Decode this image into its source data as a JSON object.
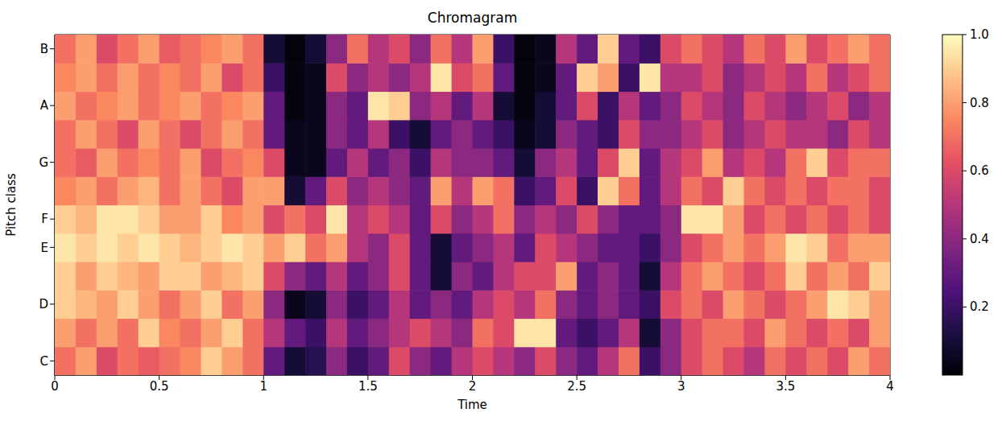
{
  "chart_data": {
    "type": "heatmap",
    "title": "Chromagram",
    "xlabel": "Time",
    "ylabel": "Pitch class",
    "categories": [
      "C",
      null,
      "D",
      null,
      "E",
      "F",
      null,
      "G",
      null,
      "A",
      null,
      "B"
    ],
    "x": [
      0.05,
      0.15,
      0.25,
      0.35,
      0.45,
      0.55,
      0.65,
      0.75,
      0.85,
      0.95,
      1.05,
      1.15,
      1.25,
      1.35,
      1.45,
      1.55,
      1.65,
      1.75,
      1.85,
      1.95,
      2.05,
      2.15,
      2.25,
      2.35,
      2.45,
      2.55,
      2.65,
      2.75,
      2.85,
      2.95,
      3.05,
      3.15,
      3.25,
      3.35,
      3.45,
      3.55,
      3.65,
      3.75,
      3.85,
      3.95
    ],
    "xlim": [
      0,
      4
    ],
    "xticks": [
      0,
      0.5,
      1,
      1.5,
      2,
      2.5,
      3,
      3.5,
      4
    ],
    "cells": [
      [
        0.7,
        0.8,
        0.6,
        0.7,
        0.65,
        0.7,
        0.75,
        0.9,
        0.8,
        0.7,
        0.3,
        0.1,
        0.15,
        0.4,
        0.2,
        0.3,
        0.6,
        0.4,
        0.3,
        0.5,
        0.6,
        0.5,
        0.4,
        0.6,
        0.4,
        0.3,
        0.5,
        0.7,
        0.2,
        0.4,
        0.6,
        0.7,
        0.6,
        0.5,
        0.7,
        0.6,
        0.7,
        0.6,
        0.8,
        0.7
      ],
      [
        0.8,
        0.7,
        0.8,
        0.7,
        0.9,
        0.75,
        0.7,
        0.8,
        0.9,
        0.7,
        0.5,
        0.3,
        0.2,
        0.5,
        0.3,
        0.4,
        0.5,
        0.6,
        0.5,
        0.4,
        0.7,
        0.6,
        0.95,
        0.95,
        0.3,
        0.2,
        0.3,
        0.5,
        0.1,
        0.4,
        0.6,
        0.7,
        0.7,
        0.6,
        0.8,
        0.7,
        0.6,
        0.7,
        0.6,
        0.8
      ],
      [
        0.9,
        0.85,
        0.8,
        0.9,
        0.8,
        0.7,
        0.8,
        0.9,
        0.7,
        0.8,
        0.4,
        0.05,
        0.1,
        0.4,
        0.2,
        0.3,
        0.5,
        0.3,
        0.4,
        0.3,
        0.5,
        0.6,
        0.5,
        0.7,
        0.4,
        0.3,
        0.4,
        0.3,
        0.2,
        0.6,
        0.7,
        0.6,
        0.8,
        0.7,
        0.6,
        0.7,
        0.8,
        0.95,
        0.9,
        0.8
      ],
      [
        0.9,
        0.8,
        0.9,
        0.85,
        0.8,
        0.9,
        0.9,
        0.8,
        0.85,
        0.9,
        0.6,
        0.4,
        0.3,
        0.5,
        0.3,
        0.4,
        0.6,
        0.3,
        0.1,
        0.4,
        0.3,
        0.5,
        0.6,
        0.6,
        0.8,
        0.3,
        0.4,
        0.3,
        0.1,
        0.5,
        0.7,
        0.8,
        0.7,
        0.6,
        0.7,
        0.9,
        0.7,
        0.8,
        0.7,
        0.9
      ],
      [
        0.95,
        0.9,
        0.95,
        0.9,
        0.95,
        0.9,
        0.85,
        0.9,
        0.95,
        0.9,
        0.8,
        0.9,
        0.7,
        0.8,
        0.5,
        0.4,
        0.6,
        0.3,
        0.1,
        0.3,
        0.4,
        0.5,
        0.3,
        0.6,
        0.5,
        0.4,
        0.3,
        0.3,
        0.2,
        0.4,
        0.6,
        0.7,
        0.8,
        0.7,
        0.8,
        0.95,
        0.9,
        0.7,
        0.8,
        0.8
      ],
      [
        0.9,
        0.85,
        0.95,
        0.95,
        0.9,
        0.8,
        0.8,
        0.9,
        0.75,
        0.8,
        0.6,
        0.7,
        0.6,
        0.95,
        0.5,
        0.6,
        0.5,
        0.3,
        0.6,
        0.4,
        0.5,
        0.7,
        0.4,
        0.5,
        0.4,
        0.6,
        0.4,
        0.3,
        0.3,
        0.4,
        0.95,
        0.95,
        0.8,
        0.6,
        0.7,
        0.6,
        0.7,
        0.6,
        0.7,
        0.6
      ],
      [
        0.75,
        0.8,
        0.7,
        0.8,
        0.85,
        0.7,
        0.8,
        0.7,
        0.6,
        0.8,
        0.8,
        0.1,
        0.3,
        0.6,
        0.4,
        0.5,
        0.4,
        0.3,
        0.8,
        0.5,
        0.8,
        0.7,
        0.2,
        0.3,
        0.6,
        0.2,
        0.9,
        0.7,
        0.3,
        0.5,
        0.7,
        0.6,
        0.9,
        0.7,
        0.6,
        0.7,
        0.6,
        0.7,
        0.7,
        0.6
      ],
      [
        0.7,
        0.65,
        0.8,
        0.7,
        0.75,
        0.7,
        0.8,
        0.6,
        0.7,
        0.75,
        0.6,
        0.05,
        0.05,
        0.3,
        0.5,
        0.3,
        0.4,
        0.2,
        0.5,
        0.4,
        0.4,
        0.3,
        0.1,
        0.4,
        0.5,
        0.3,
        0.6,
        0.9,
        0.3,
        0.5,
        0.6,
        0.8,
        0.5,
        0.6,
        0.5,
        0.7,
        0.9,
        0.6,
        0.7,
        0.7
      ],
      [
        0.7,
        0.8,
        0.7,
        0.6,
        0.8,
        0.7,
        0.6,
        0.7,
        0.8,
        0.7,
        0.3,
        0.05,
        0.05,
        0.4,
        0.3,
        0.5,
        0.2,
        0.1,
        0.3,
        0.4,
        0.3,
        0.2,
        0.05,
        0.1,
        0.4,
        0.3,
        0.2,
        0.6,
        0.4,
        0.4,
        0.5,
        0.6,
        0.4,
        0.5,
        0.6,
        0.5,
        0.5,
        0.4,
        0.6,
        0.5
      ],
      [
        0.8,
        0.7,
        0.75,
        0.8,
        0.7,
        0.75,
        0.8,
        0.7,
        0.75,
        0.8,
        0.3,
        0.02,
        0.05,
        0.4,
        0.3,
        0.95,
        0.9,
        0.4,
        0.5,
        0.3,
        0.5,
        0.1,
        0.02,
        0.1,
        0.3,
        0.6,
        0.2,
        0.5,
        0.3,
        0.4,
        0.6,
        0.5,
        0.4,
        0.6,
        0.5,
        0.4,
        0.5,
        0.6,
        0.4,
        0.5
      ],
      [
        0.75,
        0.8,
        0.7,
        0.8,
        0.7,
        0.75,
        0.7,
        0.8,
        0.6,
        0.7,
        0.2,
        0.02,
        0.05,
        0.6,
        0.4,
        0.5,
        0.4,
        0.5,
        0.95,
        0.6,
        0.7,
        0.3,
        0.02,
        0.05,
        0.3,
        0.9,
        0.8,
        0.2,
        0.95,
        0.5,
        0.5,
        0.6,
        0.4,
        0.5,
        0.6,
        0.5,
        0.7,
        0.5,
        0.6,
        0.7
      ],
      [
        0.7,
        0.8,
        0.6,
        0.7,
        0.8,
        0.65,
        0.7,
        0.75,
        0.8,
        0.7,
        0.1,
        0.02,
        0.1,
        0.4,
        0.7,
        0.5,
        0.6,
        0.4,
        0.7,
        0.5,
        0.8,
        0.2,
        0.02,
        0.05,
        0.5,
        0.3,
        0.9,
        0.3,
        0.2,
        0.6,
        0.7,
        0.6,
        0.5,
        0.7,
        0.6,
        0.8,
        0.6,
        0.7,
        0.8,
        0.7
      ]
    ],
    "colorbar": {
      "range": [
        0,
        1
      ],
      "ticks": [
        0.2,
        0.4,
        0.6,
        0.8,
        {
          "value": 1,
          "label": "1.0"
        }
      ]
    }
  }
}
